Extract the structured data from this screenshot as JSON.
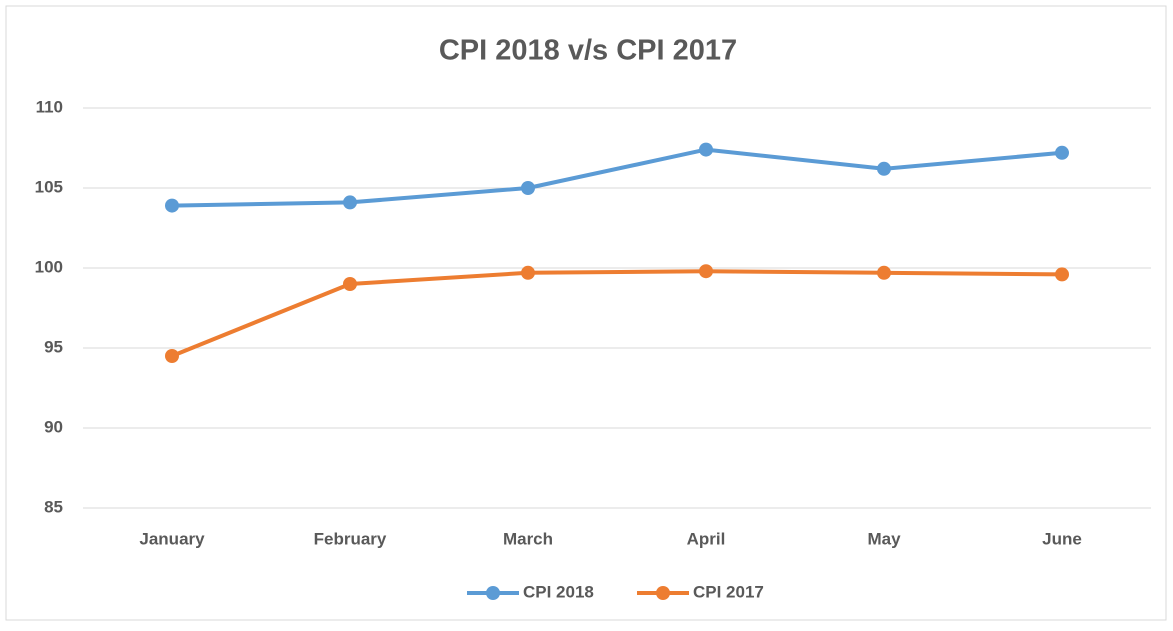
{
  "chart_data": {
    "type": "line",
    "title": "CPI 2018 v/s CPI 2017",
    "categories": [
      "January",
      "February",
      "March",
      "April",
      "May",
      "June"
    ],
    "series": [
      {
        "name": "CPI 2018",
        "color": "#5b9bd5",
        "values": [
          103.9,
          104.1,
          105.0,
          107.4,
          106.2,
          107.2
        ]
      },
      {
        "name": "CPI 2017",
        "color": "#ed7d31",
        "values": [
          94.5,
          99.0,
          99.7,
          99.8,
          99.7,
          99.6
        ]
      }
    ],
    "ylim": [
      85,
      110
    ],
    "yticks": [
      85,
      90,
      95,
      100,
      105,
      110
    ],
    "grid": true,
    "legend": "bottom"
  }
}
